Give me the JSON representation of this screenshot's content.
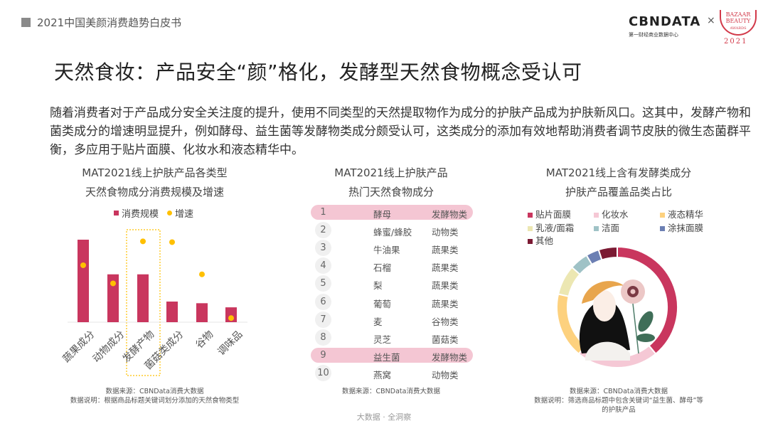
{
  "header": {
    "report_title": "2021中国美颜消费趋势白皮书",
    "logo_brand": "CBNDATA",
    "logo_brand_sub": "第一财经商业数据中心",
    "logo_separator": "×",
    "logo_partner": "BAZAAR BEAUTY",
    "logo_partner_sub": "AWARDS",
    "logo_partner_year": "2021"
  },
  "page_title": "天然食妆：产品安全“颜”格化，发酵型天然食物概念受认可",
  "paragraph": "随着消费者对于产品成分安全关注度的提升，使用不同类型的天然提取物作为成分的护肤产品成为护肤新风口。这其中，发酵产物和菌类成分的增速明显提升，例如酵母、益生菌等发酵物类成分颇受认可，这类成分的添加有效地帮助消费者调节皮肤的微生态菌群平衡，多应用于贴片面膜、化妆水和液态精华中。",
  "chart_data": [
    {
      "type": "bar",
      "title_line1": "MAT2021线上护肤产品各类型",
      "title_line2": "天然食物成分消费规模及增速",
      "categories": [
        "蔬果成分",
        "动物成分",
        "发酵产物",
        "菌菇类成分",
        "谷物",
        "调味品"
      ],
      "highlighted_category": "发酵产物",
      "series": [
        {
          "name": "消费规模",
          "type": "bar",
          "color": "#c9365e",
          "values": [
            100,
            58,
            58,
            25,
            23,
            18
          ]
        },
        {
          "name": "增速",
          "type": "scatter",
          "color": "#ffc000",
          "values": [
            69,
            47,
            98,
            97,
            58,
            5
          ]
        }
      ],
      "legend": "top",
      "grid": false,
      "axes_shown": false,
      "source": "数据来源：CBNData消费大数据",
      "note": "数据说明：根据商品标题关键词划分添加的天然食物类型"
    },
    {
      "type": "table",
      "title_line1": "MAT2021线上护肤产品",
      "title_line2": "热门天然食物成分",
      "rows": [
        {
          "rank": "1",
          "name": "酵母",
          "category": "发酵物类",
          "highlight": true
        },
        {
          "rank": "2",
          "name": "蜂蜜/蜂胶",
          "category": "动物类"
        },
        {
          "rank": "3",
          "name": "牛油果",
          "category": "蔬果类"
        },
        {
          "rank": "4",
          "name": "石榴",
          "category": "蔬果类"
        },
        {
          "rank": "5",
          "name": "梨",
          "category": "蔬果类"
        },
        {
          "rank": "6",
          "name": "葡萄",
          "category": "蔬果类"
        },
        {
          "rank": "7",
          "name": "麦",
          "category": "谷物类"
        },
        {
          "rank": "8",
          "name": "灵芝",
          "category": "菌菇类"
        },
        {
          "rank": "9",
          "name": "益生菌",
          "category": "发酵物类",
          "highlight": true
        },
        {
          "rank": "10",
          "name": "燕窝",
          "category": "动物类"
        }
      ],
      "source": "数据来源：CBNData消费大数据"
    },
    {
      "type": "pie",
      "donut": true,
      "title_line1": "MAT2021线上含有发酵类成分",
      "title_line2": "护肤产品覆盖品类占比",
      "slices": [
        {
          "name": "贴片面膜",
          "value": 39,
          "color": "#c9365e"
        },
        {
          "name": "化妆水",
          "value": 22,
          "color": "#f5c8d5"
        },
        {
          "name": "液态精华",
          "value": 17.5,
          "color": "#fdd17e"
        },
        {
          "name": "乳液/面霜",
          "value": 8,
          "color": "#ece7b2"
        },
        {
          "name": "洁面",
          "value": 5,
          "color": "#9fc2c6"
        },
        {
          "name": "涂抹面膜",
          "value": 3.5,
          "color": "#6c7fb3"
        },
        {
          "name": "其他",
          "value": 5,
          "color": "#7b1a33"
        }
      ],
      "legend": "top",
      "source": "数据来源：CBNData消费大数据",
      "note_line1": "数据说明：筛选商品标题中包含关键词“益生菌、酵母”等",
      "note_line2": "的护肤产品"
    }
  ],
  "footer": "大数据 · 全洞察"
}
